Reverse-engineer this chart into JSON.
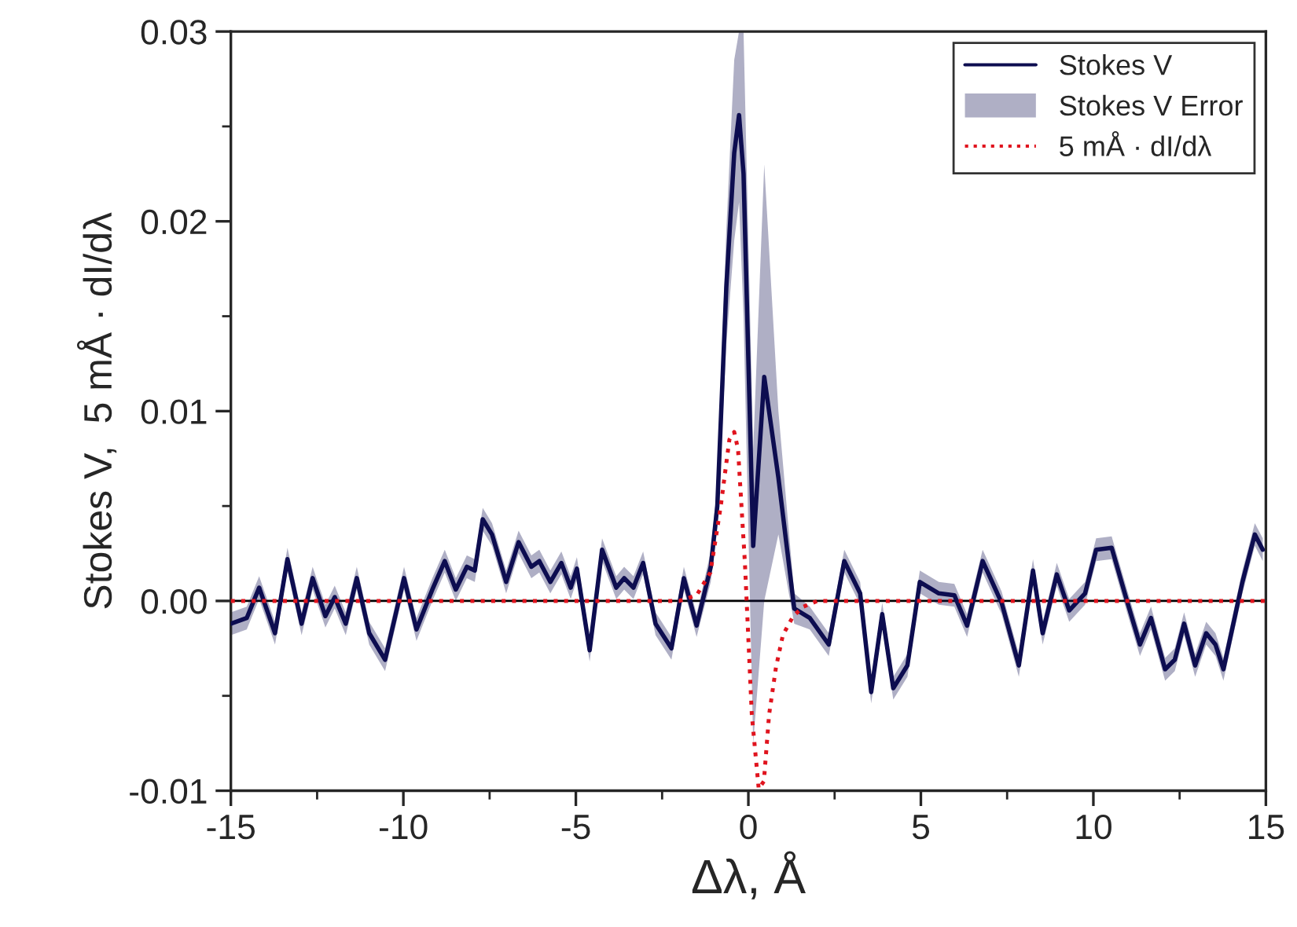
{
  "chart_data": {
    "type": "line",
    "xlabel": "Δλ, Å",
    "ylabel": "Stokes V,  5 mÅ · dI/dλ",
    "xlim": [
      -15,
      15
    ],
    "xticks": [
      -15,
      -10,
      -5,
      0,
      5,
      10,
      15
    ],
    "ylim": [
      -0.01,
      0.03
    ],
    "yticks": [
      -0.01,
      {
        "value": 0,
        "label": "0.00"
      },
      0.01,
      0.02,
      0.03
    ],
    "legend": "top right",
    "grid": false,
    "annotations": [
      "Stokes V Error"
    ],
    "ref_lines": [
      {
        "axis": "y",
        "value": 0,
        "color": "#000000"
      }
    ],
    "x": [
      -15.0,
      -14.54,
      -14.18,
      -13.72,
      -13.36,
      -12.95,
      -12.63,
      -12.26,
      -11.99,
      -11.67,
      -11.35,
      -10.99,
      -10.53,
      -9.98,
      -9.62,
      -9.16,
      -8.8,
      -8.48,
      -8.16,
      -7.93,
      -7.7,
      -7.43,
      -7.02,
      -6.66,
      -6.29,
      -6.06,
      -5.74,
      -5.42,
      -5.15,
      -4.97,
      -4.6,
      -4.24,
      -3.83,
      -3.6,
      -3.33,
      -3.05,
      -2.69,
      -2.23,
      -1.87,
      -1.5,
      -1.09,
      -0.9,
      -0.64,
      -0.41,
      -0.27,
      -0.14,
      0.14,
      0.46,
      0.87,
      1.33,
      1.78,
      2.33,
      2.78,
      3.24,
      3.56,
      3.88,
      4.2,
      4.61,
      4.97,
      5.52,
      5.97,
      6.34,
      6.79,
      7.34,
      7.84,
      8.25,
      8.53,
      8.94,
      9.3,
      9.76,
      10.08,
      10.53,
      10.99,
      11.35,
      11.67,
      12.08,
      12.36,
      12.63,
      12.95,
      13.27,
      13.54,
      13.77,
      14.32,
      14.68,
      14.91
    ],
    "series": [
      {
        "type": "line",
        "name": "Stokes V",
        "color": "#0d0d50",
        "line_style": "solid",
        "values": [
          -0.0012,
          -0.0009,
          0.0007,
          -0.0017,
          0.0022,
          -0.0012,
          0.0012,
          -0.0008,
          0.0002,
          -0.0012,
          0.0012,
          -0.0017,
          -0.0031,
          0.0012,
          -0.0015,
          0.0006,
          0.0021,
          0.0006,
          0.0018,
          0.0016,
          0.0043,
          0.0035,
          0.001,
          0.0031,
          0.0018,
          0.0021,
          0.001,
          0.002,
          0.0007,
          0.0017,
          -0.0026,
          0.0027,
          0.0007,
          0.0012,
          0.0007,
          0.002,
          -0.0012,
          -0.0025,
          0.0012,
          -0.0013,
          0.0018,
          0.005,
          0.0165,
          0.0236,
          0.0256,
          0.0225,
          0.0029,
          0.0118,
          0.0065,
          -0.0004,
          -0.0009,
          -0.0023,
          0.0021,
          0.0004,
          -0.0048,
          -0.0007,
          -0.0046,
          -0.0034,
          0.001,
          0.0004,
          0.0003,
          -0.0013,
          0.0021,
          -0.0001,
          -0.0034,
          0.0016,
          -0.0017,
          0.0014,
          -0.0005,
          0.0004,
          0.0027,
          0.0028,
          -0.0001,
          -0.0023,
          -0.0009,
          -0.0036,
          -0.0031,
          -0.0012,
          -0.0034,
          -0.0017,
          -0.0023,
          -0.0036,
          0.001,
          0.0035,
          0.0027
        ],
        "lower": [
          -0.0018,
          -0.0015,
          0.0001,
          -0.0023,
          0.0016,
          -0.0018,
          0.0006,
          -0.0014,
          -0.0004,
          -0.0018,
          0.0006,
          -0.0023,
          -0.0037,
          0.0006,
          -0.0021,
          0.0,
          0.0015,
          0.0,
          0.0012,
          0.001,
          0.0037,
          0.0029,
          0.0004,
          0.0025,
          0.0012,
          0.0015,
          0.0004,
          0.0014,
          0.0001,
          0.0011,
          -0.0032,
          0.0021,
          0.0001,
          0.0006,
          0.0001,
          0.0014,
          -0.0018,
          -0.0031,
          0.0006,
          -0.0019,
          0.001,
          0.0038,
          0.0135,
          0.019,
          0.021,
          0.015,
          -0.0075,
          0.0,
          0.0035,
          -0.0012,
          -0.0015,
          -0.0029,
          0.0015,
          -0.0002,
          -0.0054,
          -0.0013,
          -0.0052,
          -0.004,
          0.0004,
          -0.0002,
          -0.0003,
          -0.0019,
          0.0015,
          -0.0007,
          -0.004,
          0.001,
          -0.0023,
          0.0008,
          -0.0011,
          -0.0002,
          0.0021,
          0.0022,
          -0.0007,
          -0.0029,
          -0.0015,
          -0.0042,
          -0.0037,
          -0.0018,
          -0.004,
          -0.0023,
          -0.0029,
          -0.0042,
          0.0004,
          0.0029,
          0.0021
        ],
        "upper": [
          -0.0006,
          -0.0003,
          0.0013,
          -0.0011,
          0.0028,
          -0.0006,
          0.0018,
          -0.0002,
          0.0008,
          -0.0006,
          0.0018,
          -0.0011,
          -0.0025,
          0.0018,
          -0.0009,
          0.0012,
          0.0027,
          0.0012,
          0.0024,
          0.0022,
          0.0049,
          0.0041,
          0.0016,
          0.0037,
          0.0024,
          0.0027,
          0.0016,
          0.0026,
          0.0013,
          0.0023,
          -0.002,
          0.0033,
          0.0013,
          0.0018,
          0.0013,
          0.0026,
          -0.0006,
          -0.0019,
          0.0018,
          -0.0007,
          0.0026,
          0.0062,
          0.0195,
          0.0285,
          0.03,
          0.03,
          0.008,
          0.023,
          0.01,
          0.0004,
          -0.0003,
          -0.0017,
          0.0027,
          0.001,
          -0.0042,
          -0.0001,
          -0.004,
          -0.0028,
          0.0016,
          0.001,
          0.0009,
          -0.0007,
          0.0027,
          0.0005,
          -0.0028,
          0.0022,
          -0.0011,
          0.002,
          0.0001,
          0.001,
          0.0033,
          0.0034,
          0.0005,
          -0.0017,
          -0.0003,
          -0.003,
          -0.0025,
          -0.0006,
          -0.0028,
          -0.0011,
          -0.0017,
          -0.003,
          0.0016,
          0.0041,
          0.0033
        ]
      },
      {
        "type": "line",
        "name": "5 mÅ · dI/dλ",
        "color": "#e0141e",
        "line_style": "dotted",
        "x": [
          -15,
          -2,
          -1.5,
          -1.1,
          -0.8,
          -0.55,
          -0.41,
          -0.3,
          -0.1,
          0.1,
          0.3,
          0.45,
          0.6,
          0.8,
          1.0,
          1.3,
          1.6,
          2.0,
          15
        ],
        "values": [
          0,
          0,
          0.0003,
          0.0015,
          0.005,
          0.0085,
          0.0089,
          0.008,
          0.002,
          -0.006,
          -0.0099,
          -0.0095,
          -0.006,
          -0.0035,
          -0.0018,
          -0.0008,
          -0.0003,
          0,
          0
        ]
      }
    ]
  }
}
